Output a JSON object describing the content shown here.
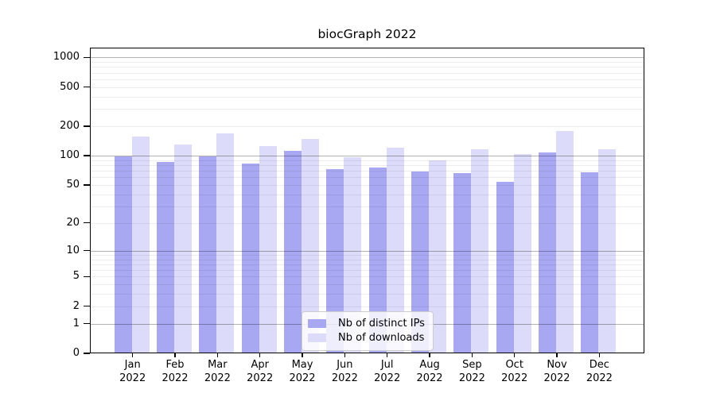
{
  "chart_data": {
    "type": "bar",
    "title": "biocGraph 2022",
    "categories": [
      "Jan 2022",
      "Feb 2022",
      "Mar 2022",
      "Apr 2022",
      "May 2022",
      "Jun 2022",
      "Jul 2022",
      "Aug 2022",
      "Sep 2022",
      "Oct 2022",
      "Nov 2022",
      "Dec 2022"
    ],
    "series": [
      {
        "name": "Nb of distinct IPs",
        "color": "#a8a8f2",
        "values": [
          99,
          86,
          99,
          83,
          113,
          73,
          76,
          69,
          66,
          54,
          107,
          68
        ]
      },
      {
        "name": "Nb of downloads",
        "color": "#dcdcfa",
        "values": [
          158,
          129,
          168,
          126,
          148,
          96,
          121,
          90,
          116,
          103,
          179,
          116
        ]
      }
    ],
    "yscale": "log(value+1)",
    "yticks": [
      0,
      1,
      2,
      5,
      10,
      20,
      50,
      100,
      200,
      500,
      1000
    ],
    "ytick_labels": [
      "0",
      "1",
      "2",
      "5",
      "10",
      "20",
      "50",
      "100",
      "200",
      "500",
      "1000"
    ],
    "ylim": [
      0,
      1200
    ],
    "xlabel": "",
    "ylabel": "",
    "grid": "horizontal, major and minor log gridlines drawn over bars",
    "legend_position": "lower center"
  }
}
